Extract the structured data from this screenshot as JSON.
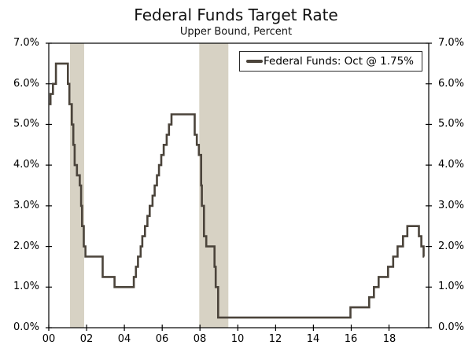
{
  "title": "Federal Funds Target Rate",
  "subtitle": "Upper Bound, Percent",
  "legend": {
    "label": "Federal Funds: Oct @ 1.75%"
  },
  "colors": {
    "line": "#4b443b",
    "recession_band": "#d7d2c4",
    "axis": "#000000",
    "text": "#000000",
    "background": "#ffffff"
  },
  "chart_data": {
    "type": "line",
    "step": true,
    "title": "Federal Funds Target Rate",
    "subtitle": "Upper Bound, Percent",
    "xlabel": "",
    "ylabel": "Percent",
    "xlim": [
      2000,
      2020.1
    ],
    "ylim": [
      0,
      7
    ],
    "grid": false,
    "legend_position": "top-right",
    "legend_entries": [
      "Federal Funds: Oct @ 1.75%"
    ],
    "x_ticks": [
      2000,
      2002,
      2004,
      2006,
      2008,
      2010,
      2012,
      2014,
      2016,
      2018
    ],
    "x_tick_labels": [
      "00",
      "02",
      "04",
      "06",
      "08",
      "10",
      "12",
      "14",
      "16",
      "18"
    ],
    "y_ticks": [
      0,
      1,
      2,
      3,
      4,
      5,
      6,
      7
    ],
    "y_tick_labels": [
      "0.0%",
      "1.0%",
      "2.0%",
      "3.0%",
      "4.0%",
      "5.0%",
      "6.0%",
      "7.0%"
    ],
    "y_axis_sides": [
      "left",
      "right"
    ],
    "recession_bands": [
      [
        2001.125,
        2001.875
      ],
      [
        2007.96,
        2009.5
      ]
    ],
    "line_end_x": 2019.86,
    "series": [
      {
        "name": "Federal Funds",
        "latest": {
          "month": "Oct",
          "value_pct": 1.75
        },
        "points": [
          [
            2000.0,
            5.5
          ],
          [
            2000.09,
            5.75
          ],
          [
            2000.22,
            6.0
          ],
          [
            2000.38,
            6.5
          ],
          [
            2001.01,
            6.0
          ],
          [
            2001.09,
            5.5
          ],
          [
            2001.22,
            5.0
          ],
          [
            2001.3,
            4.5
          ],
          [
            2001.37,
            4.0
          ],
          [
            2001.49,
            3.75
          ],
          [
            2001.64,
            3.5
          ],
          [
            2001.71,
            3.0
          ],
          [
            2001.76,
            2.5
          ],
          [
            2001.85,
            2.0
          ],
          [
            2001.94,
            1.75
          ],
          [
            2002.85,
            1.25
          ],
          [
            2003.48,
            1.0
          ],
          [
            2004.5,
            1.25
          ],
          [
            2004.61,
            1.5
          ],
          [
            2004.72,
            1.75
          ],
          [
            2004.86,
            2.0
          ],
          [
            2004.95,
            2.25
          ],
          [
            2005.09,
            2.5
          ],
          [
            2005.22,
            2.75
          ],
          [
            2005.34,
            3.0
          ],
          [
            2005.49,
            3.25
          ],
          [
            2005.6,
            3.5
          ],
          [
            2005.72,
            3.75
          ],
          [
            2005.83,
            4.0
          ],
          [
            2005.95,
            4.25
          ],
          [
            2006.08,
            4.5
          ],
          [
            2006.24,
            4.75
          ],
          [
            2006.36,
            5.0
          ],
          [
            2006.49,
            5.25
          ],
          [
            2007.72,
            4.75
          ],
          [
            2007.83,
            4.5
          ],
          [
            2007.94,
            4.25
          ],
          [
            2008.06,
            3.5
          ],
          [
            2008.1,
            3.0
          ],
          [
            2008.21,
            2.25
          ],
          [
            2008.33,
            2.0
          ],
          [
            2008.77,
            1.5
          ],
          [
            2008.83,
            1.0
          ],
          [
            2008.96,
            0.25
          ],
          [
            2015.96,
            0.5
          ],
          [
            2016.95,
            0.75
          ],
          [
            2017.2,
            1.0
          ],
          [
            2017.45,
            1.25
          ],
          [
            2017.95,
            1.5
          ],
          [
            2018.22,
            1.75
          ],
          [
            2018.45,
            2.0
          ],
          [
            2018.74,
            2.25
          ],
          [
            2018.97,
            2.5
          ],
          [
            2019.58,
            2.25
          ],
          [
            2019.71,
            2.0
          ],
          [
            2019.83,
            1.75
          ]
        ]
      }
    ]
  }
}
